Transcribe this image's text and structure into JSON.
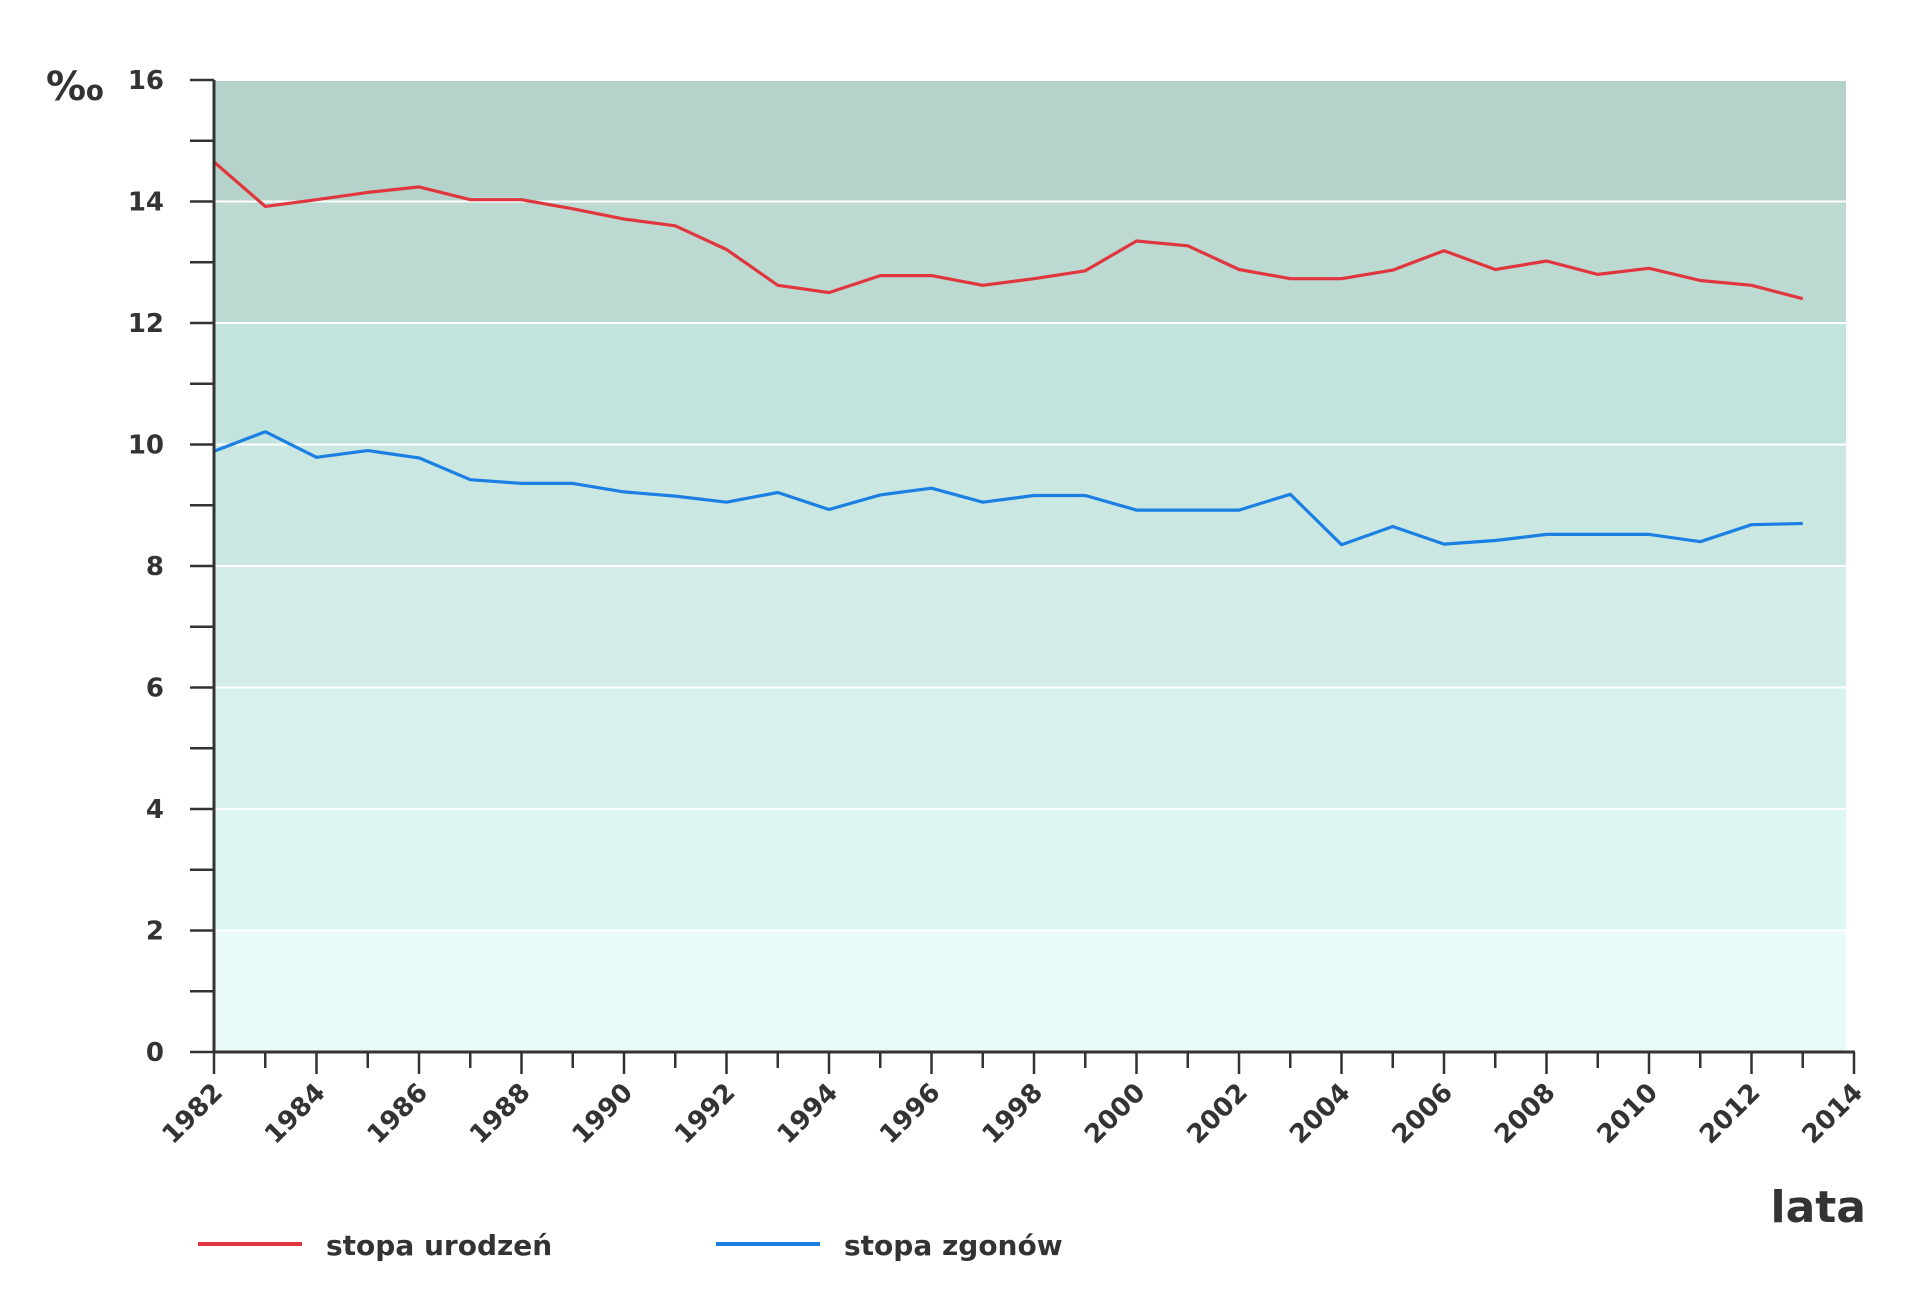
{
  "chart_data": {
    "type": "line",
    "xlabel": "lata",
    "ylabel": "‰",
    "xlim": [
      1982,
      2014
    ],
    "ylim": [
      0,
      16
    ],
    "x_ticks": [
      "1982",
      "1984",
      "1986",
      "1988",
      "1990",
      "1992",
      "1994",
      "1996",
      "1998",
      "2000",
      "2002",
      "2004",
      "2006",
      "2008",
      "2010",
      "2012",
      "2014"
    ],
    "y_ticks": [
      "0",
      "2",
      "4",
      "6",
      "8",
      "10",
      "12",
      "14",
      "16"
    ],
    "grid": true,
    "legend_position": "bottom-left",
    "x": [
      1982,
      1983,
      1984,
      1985,
      1986,
      1987,
      1988,
      1989,
      1990,
      1991,
      1992,
      1993,
      1994,
      1995,
      1996,
      1997,
      1998,
      1999,
      2000,
      2001,
      2002,
      2003,
      2004,
      2005,
      2006,
      2007,
      2008,
      2009,
      2010,
      2011,
      2012,
      2013
    ],
    "series": [
      {
        "name": "stopa urodzeń",
        "color": "#e0373f",
        "values": [
          14.65,
          13.92,
          14.03,
          14.15,
          14.24,
          14.03,
          14.03,
          13.88,
          13.71,
          13.6,
          13.21,
          12.62,
          12.5,
          12.78,
          12.78,
          12.62,
          12.73,
          12.86,
          13.35,
          13.27,
          12.88,
          12.73,
          12.73,
          12.87,
          13.19,
          12.88,
          13.02,
          12.8,
          12.9,
          12.7,
          12.62,
          12.4
        ]
      },
      {
        "name": "stopa zgonów",
        "color": "#1b7fe3",
        "values": [
          9.89,
          10.21,
          9.79,
          9.9,
          9.78,
          9.42,
          9.36,
          9.36,
          9.22,
          9.15,
          9.05,
          9.21,
          8.93,
          9.17,
          9.28,
          9.05,
          9.16,
          9.16,
          8.92,
          8.92,
          8.92,
          9.18,
          8.35,
          8.65,
          8.36,
          8.42,
          8.52,
          8.52,
          8.52,
          8.4,
          8.68,
          8.7
        ]
      }
    ],
    "band_colors": [
      "#e8fbf8",
      "#dff7f4",
      "#d9f1ec",
      "#d3ede8",
      "#cbe7e1",
      "#c3e4de",
      "#bcd9d2",
      "#b5d3ca"
    ]
  }
}
